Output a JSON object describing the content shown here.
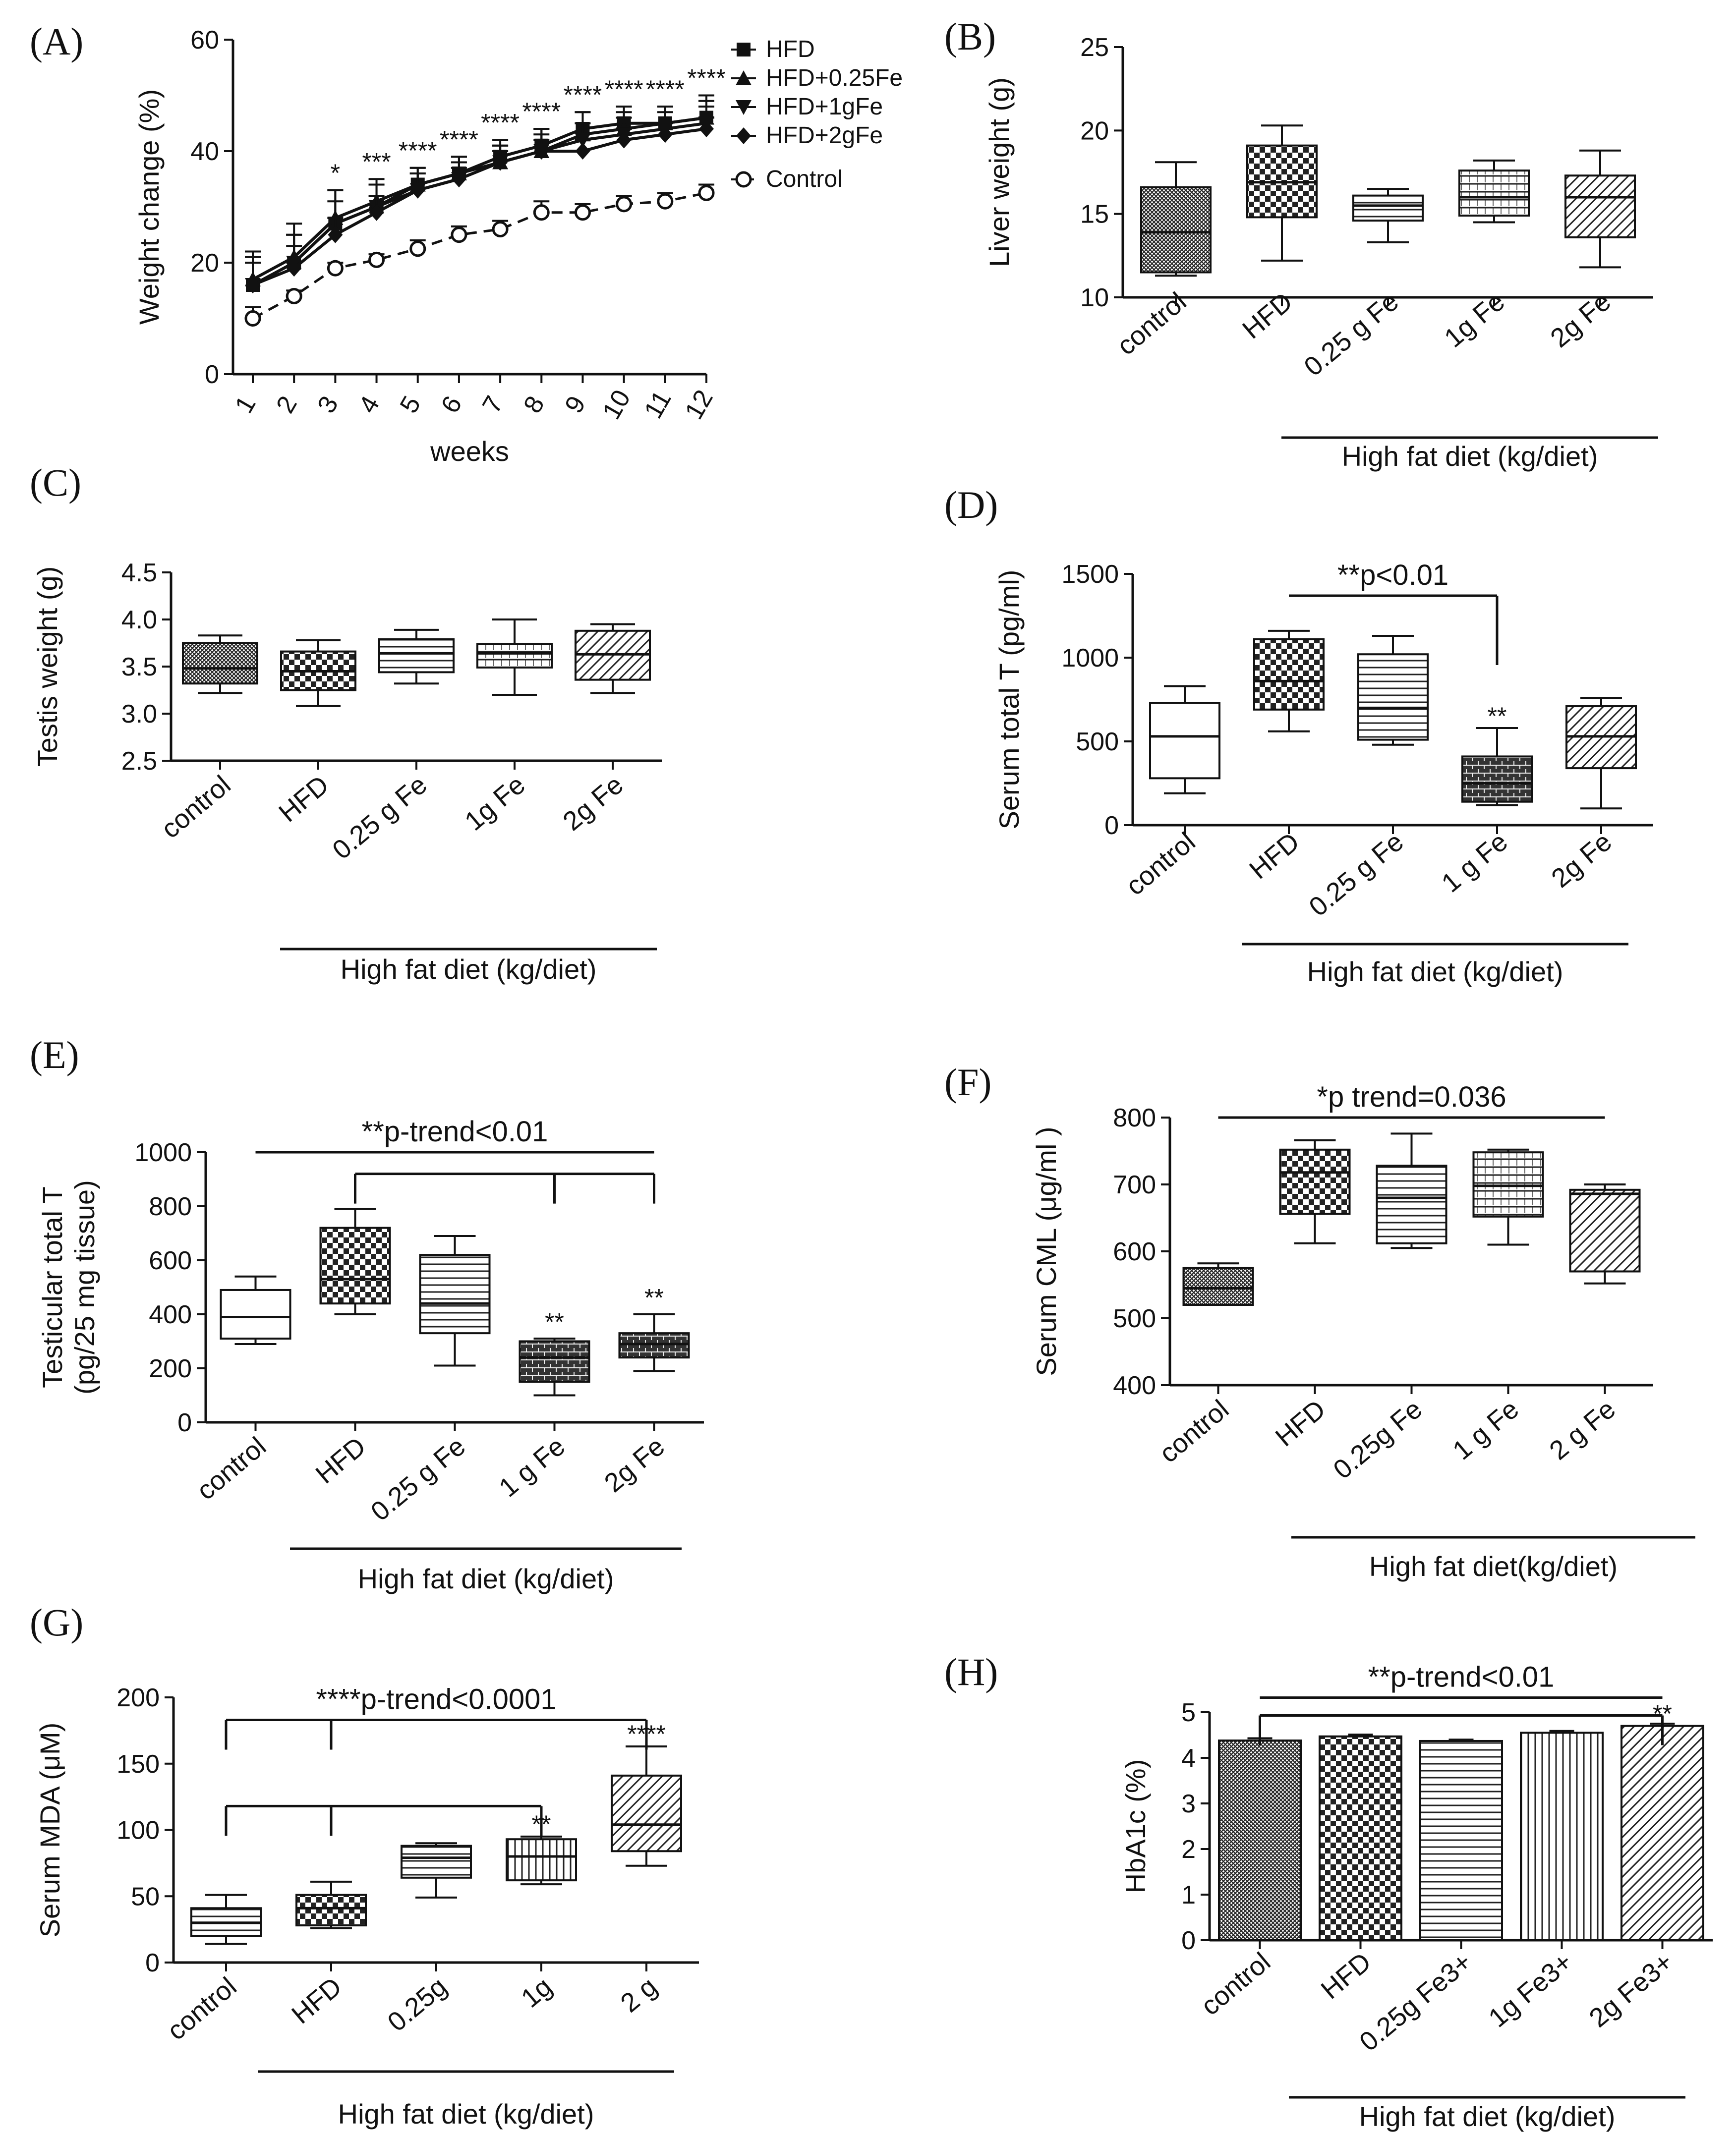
{
  "colors": {
    "ink": "#111111",
    "fill": "#ffffff",
    "dash": "#222222"
  },
  "chart_data": [
    {
      "id": "A",
      "panel_label": "(A)",
      "type": "line",
      "ylabel": "Weight change (%)",
      "xlabel": "weeks",
      "ylim": [
        0,
        60
      ],
      "yticks": [
        "0",
        "20",
        "40",
        "60"
      ],
      "x": [
        "1",
        "2",
        "3",
        "4",
        "5",
        "6",
        "7",
        "8",
        "9",
        "10",
        "11",
        "12"
      ],
      "series": [
        {
          "name": "HFD",
          "marker": "square",
          "values": [
            16,
            20,
            27,
            30,
            34,
            36,
            39,
            41,
            44,
            45,
            45,
            46
          ],
          "err": [
            5,
            5,
            6,
            4,
            3,
            3,
            3,
            3,
            3,
            3,
            3,
            3
          ]
        },
        {
          "name": "HFD+0.25Fe",
          "marker": "triangle-up",
          "values": [
            17,
            21,
            28,
            31,
            34,
            36,
            38,
            40,
            43,
            44,
            45,
            46
          ],
          "err": [
            5,
            6,
            5,
            4,
            3,
            3,
            3,
            4,
            4,
            3,
            3,
            4
          ]
        },
        {
          "name": "HFD+1gFe",
          "marker": "triangle-down",
          "values": [
            16,
            20,
            27,
            30,
            33,
            35,
            38,
            40,
            42,
            43,
            44,
            45
          ],
          "err": [
            4,
            5,
            4,
            4,
            3,
            3,
            3,
            3,
            3,
            3,
            3,
            3
          ]
        },
        {
          "name": "HFD+2gFe",
          "marker": "diamond",
          "values": [
            16,
            19,
            25,
            29,
            33,
            35,
            38,
            40,
            40,
            42,
            43,
            44
          ],
          "err": [
            4,
            4,
            3,
            3,
            3,
            2,
            2,
            2,
            2,
            2,
            2,
            2
          ]
        },
        {
          "name": "Control",
          "marker": "open-circle",
          "dashed": true,
          "values": [
            10,
            14,
            19,
            20.5,
            22.5,
            25,
            26,
            29,
            29,
            30.5,
            31,
            32.5
          ],
          "err": [
            2,
            1,
            1,
            1,
            1.5,
            1.5,
            1.5,
            2,
            1.5,
            1.5,
            1.5,
            1.5
          ]
        }
      ],
      "stars": [
        "",
        "",
        "*",
        "***",
        "****",
        "****",
        "****",
        "****",
        "****",
        "****",
        "****",
        "****"
      ]
    },
    {
      "id": "B",
      "panel_label": "(B)",
      "type": "box",
      "ylabel": "Liver weight (g)",
      "ylim": [
        10,
        25
      ],
      "yticks": [
        "10",
        "15",
        "20",
        "25"
      ],
      "categories": [
        "control",
        "HFD",
        "0.25 g Fe",
        "1g Fe",
        "2g Fe"
      ],
      "boxes": [
        {
          "min": 11.3,
          "q1": 11.5,
          "median": 13.9,
          "q3": 16.6,
          "max": 18.1,
          "pattern": "dense"
        },
        {
          "min": 12.2,
          "q1": 14.8,
          "median": 16.9,
          "q3": 19.1,
          "max": 20.3,
          "pattern": "check"
        },
        {
          "min": 13.3,
          "q1": 14.6,
          "median": 15.5,
          "q3": 16.1,
          "max": 16.5,
          "pattern": "hlines"
        },
        {
          "min": 14.5,
          "q1": 14.9,
          "median": 16.0,
          "q3": 17.6,
          "max": 18.2,
          "pattern": "grid"
        },
        {
          "min": 11.8,
          "q1": 13.6,
          "median": 16.0,
          "q3": 17.3,
          "max": 18.8,
          "pattern": "diag"
        }
      ],
      "group_label": "High fat diet (kg/diet)",
      "annotations": []
    },
    {
      "id": "C",
      "panel_label": "(C)",
      "type": "box",
      "ylabel": "Testis weight (g)",
      "ylim": [
        2.5,
        4.5
      ],
      "yticks": [
        "2.5",
        "3.0",
        "3.5",
        "4.0",
        "4.5"
      ],
      "categories": [
        "control",
        "HFD",
        "0.25 g Fe",
        "1g Fe",
        "2g Fe"
      ],
      "boxes": [
        {
          "min": 3.22,
          "q1": 3.32,
          "median": 3.48,
          "q3": 3.75,
          "max": 3.83,
          "pattern": "dense"
        },
        {
          "min": 3.08,
          "q1": 3.25,
          "median": 3.45,
          "q3": 3.66,
          "max": 3.78,
          "pattern": "check"
        },
        {
          "min": 3.32,
          "q1": 3.44,
          "median": 3.64,
          "q3": 3.79,
          "max": 3.89,
          "pattern": "hlines"
        },
        {
          "min": 3.2,
          "q1": 3.49,
          "median": 3.64,
          "q3": 3.74,
          "max": 4.0,
          "pattern": "grid"
        },
        {
          "min": 3.22,
          "q1": 3.36,
          "median": 3.63,
          "q3": 3.88,
          "max": 3.95,
          "pattern": "diag"
        }
      ],
      "group_label": "High fat diet (kg/diet)",
      "annotations": []
    },
    {
      "id": "D",
      "panel_label": "(D)",
      "type": "box",
      "ylabel": "Serum total T (pg/ml)",
      "ylim": [
        0,
        1500
      ],
      "yticks": [
        "0",
        "500",
        "1000",
        "1500"
      ],
      "categories": [
        "control",
        "HFD",
        "0.25 g Fe",
        "1 g Fe",
        "2g Fe"
      ],
      "boxes": [
        {
          "min": 190,
          "q1": 280,
          "median": 530,
          "q3": 730,
          "max": 830,
          "pattern": "none"
        },
        {
          "min": 560,
          "q1": 690,
          "median": 860,
          "q3": 1110,
          "max": 1160,
          "pattern": "check"
        },
        {
          "min": 480,
          "q1": 510,
          "median": 700,
          "q3": 1020,
          "max": 1130,
          "pattern": "hlines"
        },
        {
          "min": 120,
          "q1": 140,
          "median": 250,
          "q3": 410,
          "max": 580,
          "pattern": "brick"
        },
        {
          "min": 100,
          "q1": 340,
          "median": 530,
          "q3": 710,
          "max": 760,
          "pattern": "diag"
        }
      ],
      "group_label": "High fat diet (kg/diet)",
      "annotations": [
        {
          "text": "**p<0.01",
          "kind": "bracket",
          "from": 1,
          "to": 3,
          "level": 1370
        },
        {
          "text": "**",
          "kind": "star",
          "at": 3,
          "level": 600
        }
      ]
    },
    {
      "id": "E",
      "panel_label": "(E)",
      "type": "box",
      "ylabel": "Testicular total T",
      "ylabel2": "(pg/25 mg tissue)",
      "ylim": [
        0,
        1000
      ],
      "yticks": [
        "0",
        "200",
        "400",
        "600",
        "800",
        "1000"
      ],
      "categories": [
        "control",
        "HFD",
        "0.25 g Fe",
        "1 g Fe",
        "2g Fe"
      ],
      "boxes": [
        {
          "min": 290,
          "q1": 310,
          "median": 390,
          "q3": 490,
          "max": 540,
          "pattern": "none"
        },
        {
          "min": 400,
          "q1": 440,
          "median": 530,
          "q3": 720,
          "max": 790,
          "pattern": "check"
        },
        {
          "min": 210,
          "q1": 330,
          "median": 440,
          "q3": 620,
          "max": 690,
          "pattern": "hlines"
        },
        {
          "min": 100,
          "q1": 150,
          "median": 240,
          "q3": 300,
          "max": 310,
          "pattern": "brick"
        },
        {
          "min": 190,
          "q1": 240,
          "median": 290,
          "q3": 330,
          "max": 400,
          "pattern": "brick"
        }
      ],
      "group_label": "High fat diet (kg/diet)",
      "annotations": [
        {
          "text": "**p-trend<0.01",
          "kind": "line",
          "from": 0,
          "to": 4,
          "level": 1000
        },
        {
          "text": "",
          "kind": "bracket2",
          "from": 1,
          "mids": [
            3,
            4
          ],
          "level": 920
        },
        {
          "text": "**",
          "kind": "star",
          "at": 3,
          "level": 340
        },
        {
          "text": "**",
          "kind": "star",
          "at": 4,
          "level": 430
        }
      ]
    },
    {
      "id": "F",
      "panel_label": "(F)",
      "type": "box",
      "ylabel": "Serum CML (μg/ml )",
      "ylim": [
        400,
        800
      ],
      "yticks": [
        "400",
        "500",
        "600",
        "700",
        "800"
      ],
      "categories": [
        "control",
        "HFD",
        "0.25g Fe",
        "1 g Fe",
        "2 g Fe"
      ],
      "boxes": [
        {
          "min": 520,
          "q1": 520,
          "median": 545,
          "q3": 575,
          "max": 582,
          "pattern": "dense"
        },
        {
          "min": 612,
          "q1": 656,
          "median": 718,
          "q3": 752,
          "max": 766,
          "pattern": "check"
        },
        {
          "min": 605,
          "q1": 612,
          "median": 680,
          "q3": 728,
          "max": 776,
          "pattern": "hlines"
        },
        {
          "min": 610,
          "q1": 652,
          "median": 698,
          "q3": 748,
          "max": 752,
          "pattern": "grid"
        },
        {
          "min": 552,
          "q1": 570,
          "median": 686,
          "q3": 692,
          "max": 700,
          "pattern": "diag"
        }
      ],
      "group_label": "High fat diet(kg/diet)",
      "annotations": [
        {
          "text": "*p trend=0.036",
          "kind": "line",
          "from": 0,
          "to": 4,
          "level": 800
        }
      ]
    },
    {
      "id": "G",
      "panel_label": "(G)",
      "type": "box",
      "ylabel": "Serum MDA (μM)",
      "ylim": [
        0,
        200
      ],
      "yticks": [
        "0",
        "50",
        "100",
        "150",
        "200"
      ],
      "categories": [
        "control",
        "HFD",
        "0.25g",
        "1g",
        "2 g"
      ],
      "boxes": [
        {
          "min": 14,
          "q1": 20,
          "median": 30,
          "q3": 41,
          "max": 51,
          "pattern": "hlines"
        },
        {
          "min": 26,
          "q1": 28,
          "median": 41,
          "q3": 51,
          "max": 61,
          "pattern": "check"
        },
        {
          "min": 49,
          "q1": 64,
          "median": 79,
          "q3": 88,
          "max": 90,
          "pattern": "hlines"
        },
        {
          "min": 59,
          "q1": 62,
          "median": 80,
          "q3": 93,
          "max": 95,
          "pattern": "vlines"
        },
        {
          "min": 73,
          "q1": 84,
          "median": 104,
          "q3": 141,
          "max": 163,
          "pattern": "diag"
        }
      ],
      "group_label": "High fat diet (kg/diet)",
      "annotations": [
        {
          "text": "****p-trend<0.0001",
          "kind": "line",
          "from": 0,
          "to": 4,
          "level": 183
        },
        {
          "text": "",
          "kind": "bracket2",
          "from": 0,
          "mids": [
            1,
            4
          ],
          "level": 183
        },
        {
          "text": "",
          "kind": "bracket2",
          "from": 0,
          "mids": [
            1,
            3
          ],
          "level": 118
        },
        {
          "text": "**",
          "kind": "star",
          "at": 3,
          "level": 98
        },
        {
          "text": "****",
          "kind": "star",
          "at": 4,
          "level": 166
        }
      ]
    },
    {
      "id": "H",
      "panel_label": "(H)",
      "type": "bar",
      "ylabel": "HbA1c (%)",
      "ylim": [
        0,
        5
      ],
      "yticks": [
        "0",
        "1",
        "2",
        "3",
        "4",
        "5"
      ],
      "categories": [
        "control",
        "HFD",
        "0.25g Fe3+",
        "1g Fe3+",
        "2g Fe3+"
      ],
      "values": [
        4.38,
        4.47,
        4.37,
        4.55,
        4.7
      ],
      "err": [
        0.05,
        0.04,
        0.03,
        0.04,
        0.05
      ],
      "patterns": [
        "dense",
        "check",
        "hlines",
        "vlines",
        "diag"
      ],
      "group_label": "High fat diet (kg/diet)",
      "annotations": [
        {
          "text": "**p-trend<0.01",
          "kind": "line",
          "from": 0,
          "to": 4,
          "level": 5.32
        },
        {
          "text": "",
          "kind": "bracket2",
          "from": 0,
          "mids": [
            4
          ],
          "level": 4.93
        },
        {
          "text": "**",
          "kind": "star",
          "at": 4,
          "level": 4.78
        }
      ]
    }
  ]
}
